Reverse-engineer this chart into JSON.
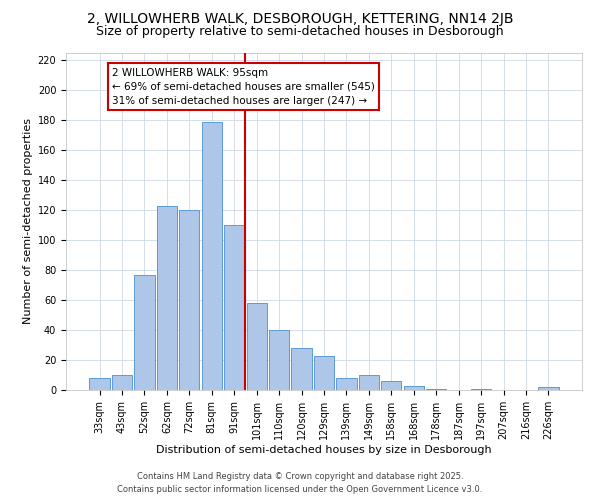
{
  "title_line1": "2, WILLOWHERB WALK, DESBOROUGH, KETTERING, NN14 2JB",
  "title_line2": "Size of property relative to semi-detached houses in Desborough",
  "xlabel": "Distribution of semi-detached houses by size in Desborough",
  "ylabel": "Number of semi-detached properties",
  "bar_labels": [
    "33sqm",
    "43sqm",
    "52sqm",
    "62sqm",
    "72sqm",
    "81sqm",
    "91sqm",
    "101sqm",
    "110sqm",
    "120sqm",
    "129sqm",
    "139sqm",
    "149sqm",
    "158sqm",
    "168sqm",
    "178sqm",
    "187sqm",
    "197sqm",
    "207sqm",
    "216sqm",
    "226sqm"
  ],
  "bar_values": [
    8,
    10,
    77,
    123,
    120,
    179,
    110,
    58,
    40,
    28,
    23,
    8,
    10,
    6,
    3,
    1,
    0,
    1,
    0,
    0,
    2
  ],
  "bar_color": "#aec6e8",
  "bar_edge_color": "#5b9bd5",
  "vline_x": 6.5,
  "vline_color": "#cc0000",
  "annotation_title": "2 WILLOWHERB WALK: 95sqm",
  "annotation_line1": "← 69% of semi-detached houses are smaller (545)",
  "annotation_line2": "31% of semi-detached houses are larger (247) →",
  "annotation_box_color": "#ffffff",
  "annotation_box_edge": "#cc0000",
  "ylim": [
    0,
    225
  ],
  "yticks": [
    0,
    20,
    40,
    60,
    80,
    100,
    120,
    140,
    160,
    180,
    200,
    220
  ],
  "footer_line1": "Contains HM Land Registry data © Crown copyright and database right 2025.",
  "footer_line2": "Contains public sector information licensed under the Open Government Licence v3.0.",
  "bg_color": "#ffffff",
  "grid_color": "#ccd9e8",
  "title_fontsize": 10,
  "subtitle_fontsize": 9,
  "annotation_fontsize": 7.5,
  "tick_fontsize": 7,
  "axis_label_fontsize": 8,
  "footer_fontsize": 6
}
